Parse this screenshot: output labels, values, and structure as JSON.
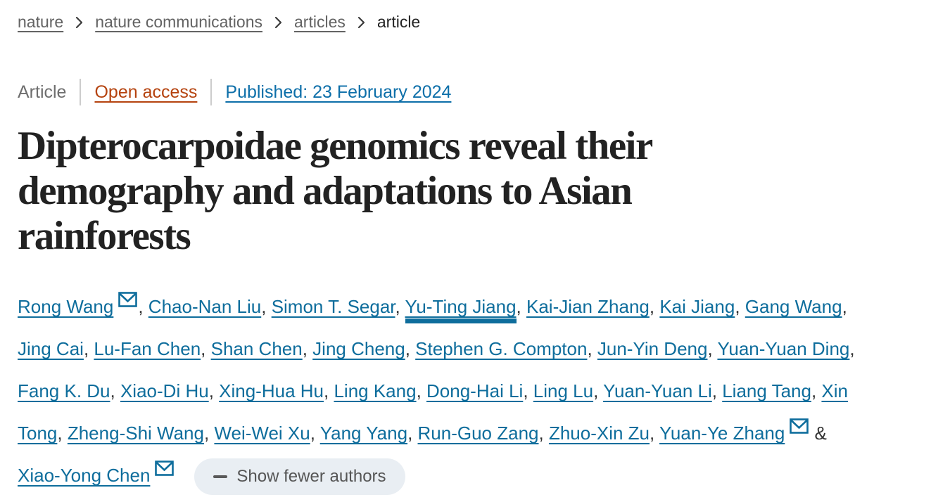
{
  "breadcrumb": {
    "items": [
      {
        "label": "nature",
        "link": true
      },
      {
        "label": "nature communications",
        "link": true
      },
      {
        "label": "articles",
        "link": true
      },
      {
        "label": "article",
        "link": false
      }
    ]
  },
  "meta": {
    "type_label": "Article",
    "open_access_label": "Open access",
    "published_label": "Published: 23 February 2024"
  },
  "title": "Dipterocarpoidae genomics reveal their demography and adaptations to Asian rainforests",
  "authors": [
    {
      "name": "Rong Wang",
      "envelope": true,
      "highlight": false
    },
    {
      "name": "Chao-Nan Liu",
      "envelope": false,
      "highlight": false
    },
    {
      "name": "Simon T. Segar",
      "envelope": false,
      "highlight": false
    },
    {
      "name": "Yu-Ting Jiang",
      "envelope": false,
      "highlight": true
    },
    {
      "name": "Kai-Jian Zhang",
      "envelope": false,
      "highlight": false
    },
    {
      "name": "Kai Jiang",
      "envelope": false,
      "highlight": false
    },
    {
      "name": "Gang Wang",
      "envelope": false,
      "highlight": false
    },
    {
      "name": "Jing Cai",
      "envelope": false,
      "highlight": false
    },
    {
      "name": "Lu-Fan Chen",
      "envelope": false,
      "highlight": false
    },
    {
      "name": "Shan Chen",
      "envelope": false,
      "highlight": false
    },
    {
      "name": "Jing Cheng",
      "envelope": false,
      "highlight": false
    },
    {
      "name": "Stephen G. Compton",
      "envelope": false,
      "highlight": false
    },
    {
      "name": "Jun-Yin Deng",
      "envelope": false,
      "highlight": false
    },
    {
      "name": "Yuan-Yuan Ding",
      "envelope": false,
      "highlight": false
    },
    {
      "name": "Fang K. Du",
      "envelope": false,
      "highlight": false
    },
    {
      "name": "Xiao-Di Hu",
      "envelope": false,
      "highlight": false
    },
    {
      "name": "Xing-Hua Hu",
      "envelope": false,
      "highlight": false
    },
    {
      "name": "Ling Kang",
      "envelope": false,
      "highlight": false
    },
    {
      "name": "Dong-Hai Li",
      "envelope": false,
      "highlight": false
    },
    {
      "name": "Ling Lu",
      "envelope": false,
      "highlight": false
    },
    {
      "name": "Yuan-Yuan Li",
      "envelope": false,
      "highlight": false
    },
    {
      "name": "Liang Tang",
      "envelope": false,
      "highlight": false
    },
    {
      "name": "Xin Tong",
      "envelope": false,
      "highlight": false
    },
    {
      "name": "Zheng-Shi Wang",
      "envelope": false,
      "highlight": false
    },
    {
      "name": "Wei-Wei Xu",
      "envelope": false,
      "highlight": false
    },
    {
      "name": "Yang Yang",
      "envelope": false,
      "highlight": false
    },
    {
      "name": "Run-Guo Zang",
      "envelope": false,
      "highlight": false
    },
    {
      "name": "Zhuo-Xin Zu",
      "envelope": false,
      "highlight": false
    },
    {
      "name": "Yuan-Ye Zhang",
      "envelope": true,
      "highlight": false
    },
    {
      "name": "Xiao-Yong Chen",
      "envelope": true,
      "highlight": false
    }
  ],
  "separators": {
    "between": ", ",
    "last": " & "
  },
  "buttons": {
    "show_fewer_authors": "Show fewer authors"
  },
  "icons": {
    "chevron-right-icon": "›",
    "envelope-icon": "✉",
    "minus-icon": "−"
  },
  "colors": {
    "author_link": "#0e6d9c",
    "published_link": "#0d6fa9",
    "open_access": "#b5430f",
    "breadcrumb_text": "#636363",
    "title_text": "#222222",
    "button_background": "#e9eef3",
    "button_text": "#555555",
    "divider": "#cccccc"
  }
}
